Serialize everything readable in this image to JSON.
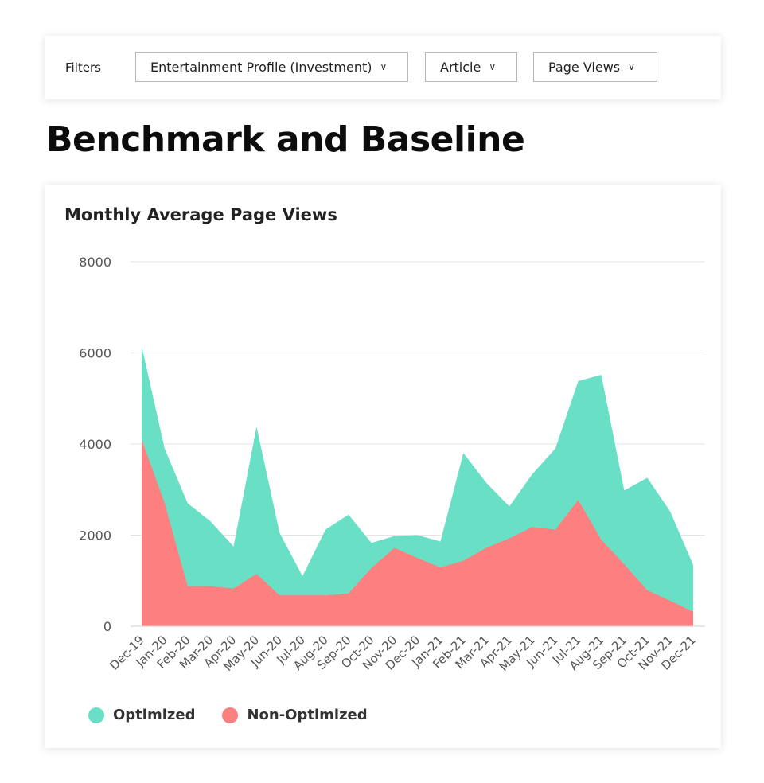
{
  "filters": {
    "label": "Filters",
    "profile": "Entertainment Profile (Investment)",
    "content_type": "Article",
    "metric": "Page Views"
  },
  "heading": "Benchmark and Baseline",
  "chart_data": {
    "type": "area",
    "title": "Monthly Average Page Views",
    "xlabel": "",
    "ylabel": "",
    "ylim": [
      0,
      8000
    ],
    "yticks": [
      0,
      2000,
      4000,
      6000,
      8000
    ],
    "grid": true,
    "legend_position": "bottom-left",
    "categories": [
      "Dec-19",
      "Jan-20",
      "Feb-20",
      "Mar-20",
      "Apr-20",
      "May-20",
      "Jun-20",
      "Jul-20",
      "Aug-20",
      "Sep-20",
      "Oct-20",
      "Nov-20",
      "Dec-20",
      "Jan-21",
      "Feb-21",
      "Mar-21",
      "Apr-21",
      "May-21",
      "Jun-21",
      "Jul-21",
      "Aug-21",
      "Sep-21",
      "Oct-21",
      "Nov-21",
      "Dec-21"
    ],
    "series": [
      {
        "name": "Optimized",
        "color": "#69e0c5",
        "values": [
          6150,
          3900,
          2700,
          2300,
          1750,
          4380,
          2050,
          1100,
          2120,
          2450,
          1830,
          1980,
          2000,
          1860,
          3800,
          3150,
          2630,
          3340,
          3900,
          5380,
          5520,
          2980,
          3260,
          2520,
          1350
        ]
      },
      {
        "name": "Non-Optimized",
        "color": "#fd8081",
        "values": [
          4100,
          2700,
          880,
          880,
          830,
          1150,
          680,
          680,
          680,
          720,
          1280,
          1720,
          1500,
          1290,
          1440,
          1720,
          1930,
          2180,
          2120,
          2770,
          1900,
          1360,
          790,
          560,
          320
        ]
      }
    ]
  }
}
